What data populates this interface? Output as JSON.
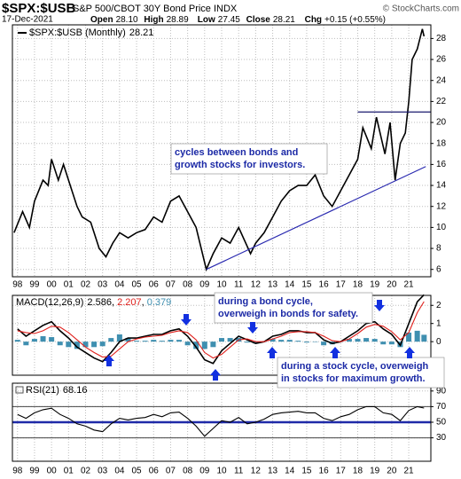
{
  "header": {
    "symbol": "$SPX:$USB",
    "name": "S&P 500/CBOT 30Y Bond Price INDX",
    "source": "© StockCharts.com",
    "date": "17-Dec-2021",
    "quote": [
      {
        "label": "Open",
        "value": "28.10"
      },
      {
        "label": "High",
        "value": "28.89"
      },
      {
        "label": "Low",
        "value": "27.45"
      },
      {
        "label": "Close",
        "value": "28.21"
      },
      {
        "label": "Chg",
        "value": "+0.15 (+0.55%)"
      }
    ]
  },
  "chart_data": [
    {
      "type": "line",
      "xlim": [
        1997.7,
        2022.3
      ],
      "xticks": [
        {
          "value": 1998,
          "label": "98"
        },
        {
          "value": 1999,
          "label": "99"
        },
        {
          "value": 2000,
          "label": "00"
        },
        {
          "value": 2001,
          "label": "01"
        },
        {
          "value": 2002,
          "label": "02"
        },
        {
          "value": 2003,
          "label": "03"
        },
        {
          "value": 2004,
          "label": "04"
        },
        {
          "value": 2005,
          "label": "05"
        },
        {
          "value": 2006,
          "label": "06"
        },
        {
          "value": 2007,
          "label": "07"
        },
        {
          "value": 2008,
          "label": "08"
        },
        {
          "value": 2009,
          "label": "09"
        },
        {
          "value": 2010,
          "label": "10"
        },
        {
          "value": 2011,
          "label": "11"
        },
        {
          "value": 2012,
          "label": "12"
        },
        {
          "value": 2013,
          "label": "13"
        },
        {
          "value": 2014,
          "label": "14"
        },
        {
          "value": 2015,
          "label": "15"
        },
        {
          "value": 2016,
          "label": "16"
        },
        {
          "value": 2017,
          "label": "17"
        },
        {
          "value": 2018,
          "label": "18"
        },
        {
          "value": 2019,
          "label": "19"
        },
        {
          "value": 2020,
          "label": "20"
        },
        {
          "value": 2021,
          "label": "21"
        }
      ],
      "ylim": [
        5.3,
        29.3
      ],
      "yticks": [
        6,
        8,
        10,
        12,
        14,
        16,
        18,
        20,
        22,
        24,
        26,
        28
      ],
      "grid": true,
      "x": [
        1997.8,
        1998.3,
        1998.7,
        1999.0,
        1999.5,
        1999.8,
        2000.0,
        2000.4,
        2000.7,
        2001.0,
        2001.5,
        2001.8,
        2002.3,
        2002.8,
        2003.2,
        2003.6,
        2004.0,
        2004.5,
        2005.0,
        2005.5,
        2006.0,
        2006.5,
        2007.0,
        2007.5,
        2008.0,
        2008.5,
        2009.1,
        2009.5,
        2010.0,
        2010.5,
        2011.0,
        2011.7,
        2012.0,
        2012.5,
        2013.0,
        2013.5,
        2014.0,
        2014.5,
        2015.0,
        2015.5,
        2016.0,
        2016.5,
        2017.0,
        2017.5,
        2018.0,
        2018.3,
        2018.8,
        2019.1,
        2019.6,
        2019.9,
        2020.2,
        2020.5,
        2020.8,
        2021.0,
        2021.2,
        2021.5,
        2021.8,
        2021.9
      ],
      "series": [
        {
          "name": "$SPX:$USB (Monthly)",
          "color": "#000000",
          "values": [
            9.5,
            11.5,
            10.0,
            12.5,
            14.5,
            14.0,
            16.5,
            14.5,
            16.0,
            14.5,
            12.0,
            11.0,
            10.5,
            8.0,
            7.2,
            8.5,
            9.5,
            9.0,
            9.5,
            9.8,
            11.0,
            10.5,
            12.5,
            13.0,
            11.5,
            10.0,
            6.0,
            7.5,
            9.0,
            8.5,
            10.0,
            7.5,
            8.5,
            9.5,
            11.0,
            12.5,
            13.5,
            14.0,
            14.0,
            15.0,
            13.0,
            12.0,
            13.5,
            15.0,
            16.5,
            19.5,
            17.5,
            20.5,
            17.0,
            20.0,
            14.5,
            18.0,
            19.0,
            22.0,
            26.0,
            27.0,
            28.9,
            28.21
          ]
        }
      ],
      "lines": [
        {
          "x": [
            2009.1,
            2022.0
          ],
          "y": [
            6,
            15.8
          ],
          "color": "#2b2bb0"
        },
        {
          "x": [
            2018.0,
            2022.3
          ],
          "y": [
            21,
            21
          ],
          "color": "#1a1a6e"
        }
      ],
      "annotations": [
        [
          "cycles between bonds and",
          "growth stocks for investors."
        ]
      ]
    },
    {
      "type": "line",
      "title": "MACD(12,26,9)",
      "ylim": [
        -1.85,
        2.55
      ],
      "yticks": [
        0,
        1,
        2
      ],
      "x": [
        1998.0,
        1998.5,
        1999.0,
        1999.5,
        2000.0,
        2000.5,
        2001.0,
        2001.5,
        2002.0,
        2002.5,
        2003.0,
        2003.5,
        2004.0,
        2004.5,
        2005.0,
        2005.5,
        2006.0,
        2006.5,
        2007.0,
        2007.5,
        2008.0,
        2008.5,
        2009.0,
        2009.5,
        2010.0,
        2010.5,
        2011.0,
        2011.5,
        2012.0,
        2012.5,
        2013.0,
        2013.5,
        2014.0,
        2014.5,
        2015.0,
        2015.5,
        2016.0,
        2016.5,
        2017.0,
        2017.5,
        2018.0,
        2018.5,
        2019.0,
        2019.5,
        2020.0,
        2020.5,
        2021.0,
        2021.5,
        2021.9
      ],
      "series": [
        {
          "name": "MACD",
          "type": "line",
          "color": "#000000",
          "values": [
            0.7,
            0.3,
            0.6,
            0.9,
            1.1,
            0.6,
            0.2,
            -0.3,
            -0.6,
            -0.9,
            -1.1,
            -0.6,
            0.0,
            0.2,
            0.2,
            0.3,
            0.4,
            0.4,
            0.6,
            0.7,
            0.3,
            -0.3,
            -1.0,
            -1.2,
            -0.5,
            -0.1,
            0.3,
            0.1,
            -0.1,
            0.0,
            0.3,
            0.4,
            0.6,
            0.6,
            0.5,
            0.5,
            0.1,
            -0.1,
            0.0,
            0.3,
            0.6,
            1.0,
            1.1,
            0.7,
            0.4,
            -0.2,
            1.0,
            2.2,
            2.586
          ]
        },
        {
          "name": "Signal",
          "type": "line",
          "color": "#e0201c",
          "values": [
            0.6,
            0.5,
            0.45,
            0.6,
            0.85,
            0.8,
            0.5,
            0.1,
            -0.3,
            -0.6,
            -0.85,
            -0.8,
            -0.4,
            0.0,
            0.15,
            0.25,
            0.3,
            0.35,
            0.5,
            0.6,
            0.5,
            0.1,
            -0.6,
            -0.9,
            -0.7,
            -0.3,
            0.1,
            0.15,
            0.0,
            0.0,
            0.15,
            0.3,
            0.5,
            0.55,
            0.55,
            0.5,
            0.3,
            0.05,
            0.0,
            0.15,
            0.45,
            0.8,
            0.95,
            0.85,
            0.55,
            0.1,
            0.5,
            1.6,
            2.207
          ]
        },
        {
          "name": "Histogram",
          "type": "bar",
          "color": "#3f8fb0",
          "values": [
            0.1,
            -0.2,
            0.15,
            0.3,
            0.25,
            -0.2,
            -0.3,
            -0.4,
            -0.3,
            -0.3,
            -0.25,
            0.2,
            0.4,
            0.2,
            0.05,
            0.05,
            0.1,
            0.05,
            0.1,
            0.1,
            -0.2,
            -0.4,
            -0.4,
            -0.3,
            0.2,
            0.2,
            0.2,
            -0.05,
            -0.1,
            0.0,
            0.15,
            0.1,
            0.1,
            0.05,
            -0.05,
            0.0,
            -0.2,
            -0.15,
            0.0,
            0.15,
            0.15,
            0.2,
            0.15,
            -0.15,
            -0.15,
            -0.3,
            0.5,
            0.6,
            0.379
          ]
        }
      ],
      "annotations": [
        [
          "during a bond cycle,",
          "overweigh in bonds for safety."
        ],
        [
          "during a stock cycle, overweigh",
          "in stocks for maximum growth."
        ]
      ]
    },
    {
      "type": "line",
      "title": "RSI(21)",
      "ylim": [
        0,
        100
      ],
      "yticks": [
        30,
        50,
        70,
        90
      ],
      "xticks": [
        {
          "value": 1998,
          "label": "98"
        },
        {
          "value": 1999,
          "label": "99"
        },
        {
          "value": 2000,
          "label": "00"
        },
        {
          "value": 2001,
          "label": "01"
        },
        {
          "value": 2002,
          "label": "02"
        },
        {
          "value": 2003,
          "label": "03"
        },
        {
          "value": 2004,
          "label": "04"
        },
        {
          "value": 2005,
          "label": "05"
        },
        {
          "value": 2006,
          "label": "06"
        },
        {
          "value": 2007,
          "label": "07"
        },
        {
          "value": 2008,
          "label": "08"
        },
        {
          "value": 2009,
          "label": "09"
        },
        {
          "value": 2010,
          "label": "10"
        },
        {
          "value": 2011,
          "label": "11"
        },
        {
          "value": 2012,
          "label": "12"
        },
        {
          "value": 2013,
          "label": "13"
        },
        {
          "value": 2014,
          "label": "14"
        },
        {
          "value": 2015,
          "label": "15"
        },
        {
          "value": 2016,
          "label": "16"
        },
        {
          "value": 2017,
          "label": "17"
        },
        {
          "value": 2018,
          "label": "18"
        },
        {
          "value": 2019,
          "label": "19"
        },
        {
          "value": 2020,
          "label": "20"
        },
        {
          "value": 2021,
          "label": "21"
        }
      ],
      "x": [
        1998.0,
        1998.5,
        1999.0,
        1999.5,
        2000.0,
        2000.5,
        2001.0,
        2001.5,
        2002.0,
        2002.5,
        2003.0,
        2003.5,
        2004.0,
        2004.5,
        2005.0,
        2005.5,
        2006.0,
        2006.5,
        2007.0,
        2007.5,
        2008.0,
        2008.5,
        2009.0,
        2009.5,
        2010.0,
        2010.5,
        2011.0,
        2011.5,
        2012.0,
        2012.5,
        2013.0,
        2013.5,
        2014.0,
        2014.5,
        2015.0,
        2015.5,
        2016.0,
        2016.5,
        2017.0,
        2017.5,
        2018.0,
        2018.5,
        2019.0,
        2019.5,
        2020.0,
        2020.5,
        2021.0,
        2021.5,
        2021.9
      ],
      "series": [
        {
          "name": "RSI",
          "type": "line",
          "color": "#000000",
          "values": [
            60,
            55,
            62,
            66,
            68,
            60,
            55,
            48,
            45,
            40,
            38,
            48,
            55,
            53,
            55,
            56,
            60,
            57,
            62,
            63,
            55,
            45,
            32,
            42,
            52,
            50,
            56,
            48,
            50,
            54,
            60,
            62,
            63,
            64,
            62,
            62,
            55,
            52,
            57,
            60,
            66,
            70,
            70,
            62,
            60,
            52,
            65,
            70,
            68.16
          ]
        }
      ],
      "hlines": [
        {
          "y": 70,
          "color": "#444444",
          "width": 1
        },
        {
          "y": 30,
          "color": "#444444",
          "width": 1
        },
        {
          "y": 50,
          "color": "#1f2aa8",
          "width": 2.5
        }
      ]
    }
  ]
}
